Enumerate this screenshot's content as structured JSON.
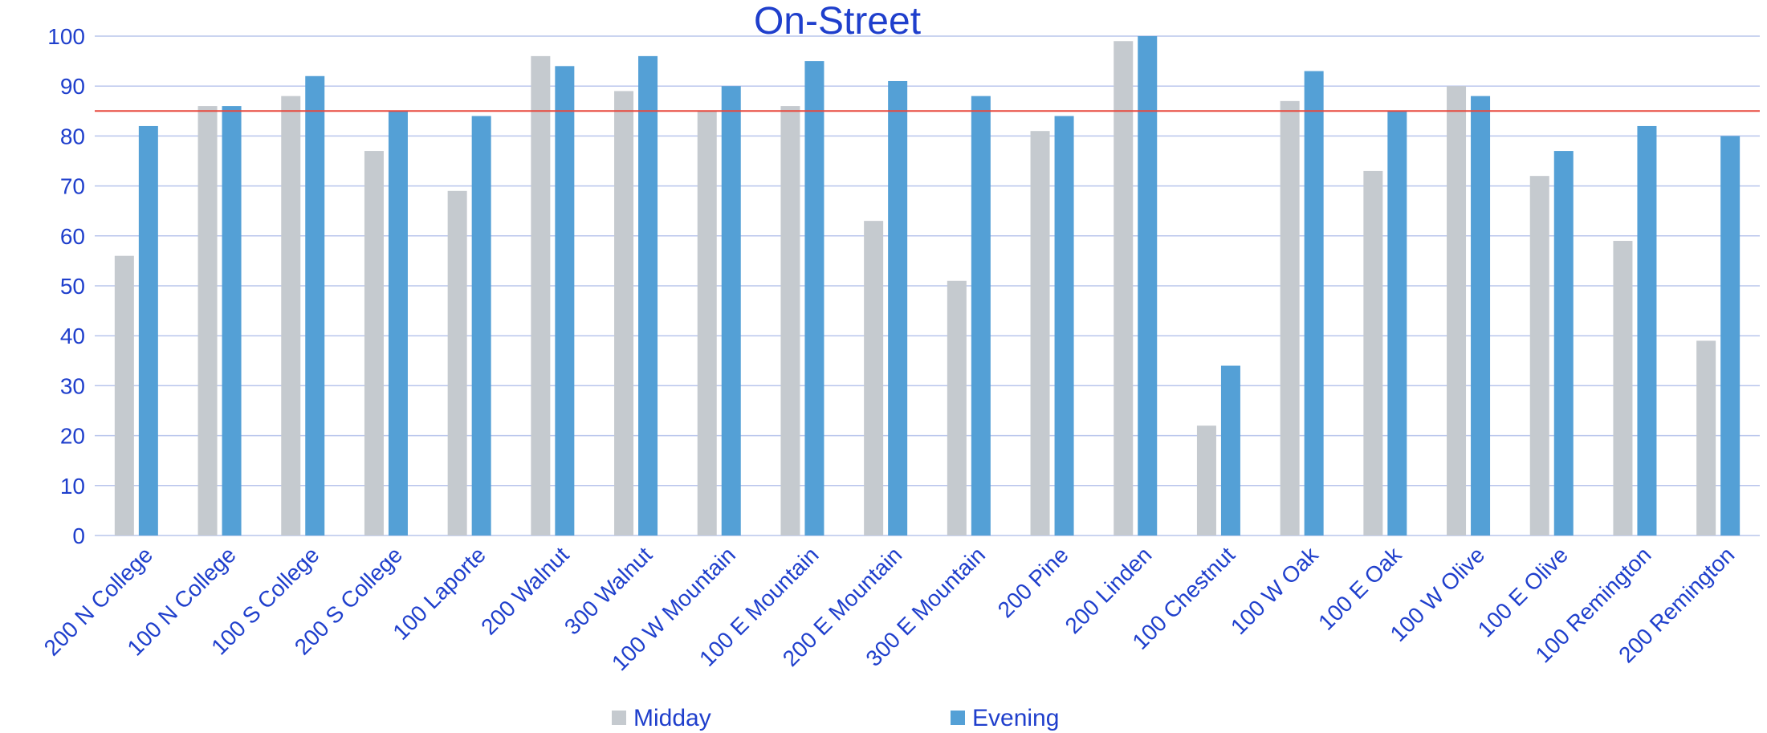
{
  "chart_data": {
    "type": "bar",
    "title": "On-Street",
    "xlabel": "",
    "ylabel": "",
    "ylim": [
      0,
      100
    ],
    "yticks": [
      0,
      10,
      20,
      30,
      40,
      50,
      60,
      70,
      80,
      90,
      100
    ],
    "grid": true,
    "legend_position": "bottom",
    "reference_line": {
      "value": 85,
      "color": "#e8483d"
    },
    "categories": [
      "200 N College",
      "100 N College",
      "100 S College",
      "200 S College",
      "100 Laporte",
      "200 Walnut",
      "300 Walnut",
      "100 W Mountain",
      "100 E Mountain",
      "200 E Mountain",
      "300 E Mountain",
      "200 Pine",
      "200 Linden",
      "100 Chestnut",
      "100 W Oak",
      "100 E Oak",
      "100 W Olive",
      "100 E Olive",
      "100 Remington",
      "200 Remington"
    ],
    "series": [
      {
        "name": "Midday",
        "color": "#c5cacf",
        "values": [
          56,
          86,
          88,
          77,
          69,
          96,
          89,
          85,
          86,
          63,
          51,
          81,
          99,
          22,
          87,
          73,
          90,
          72,
          59,
          39
        ]
      },
      {
        "name": "Evening",
        "color": "#54a0d6",
        "values": [
          82,
          86,
          92,
          85,
          84,
          94,
          96,
          90,
          95,
          91,
          88,
          84,
          100,
          34,
          93,
          85,
          88,
          77,
          82,
          80
        ]
      }
    ],
    "text_color": "#1f3fcc",
    "grid_color": "#b9c5ec"
  }
}
